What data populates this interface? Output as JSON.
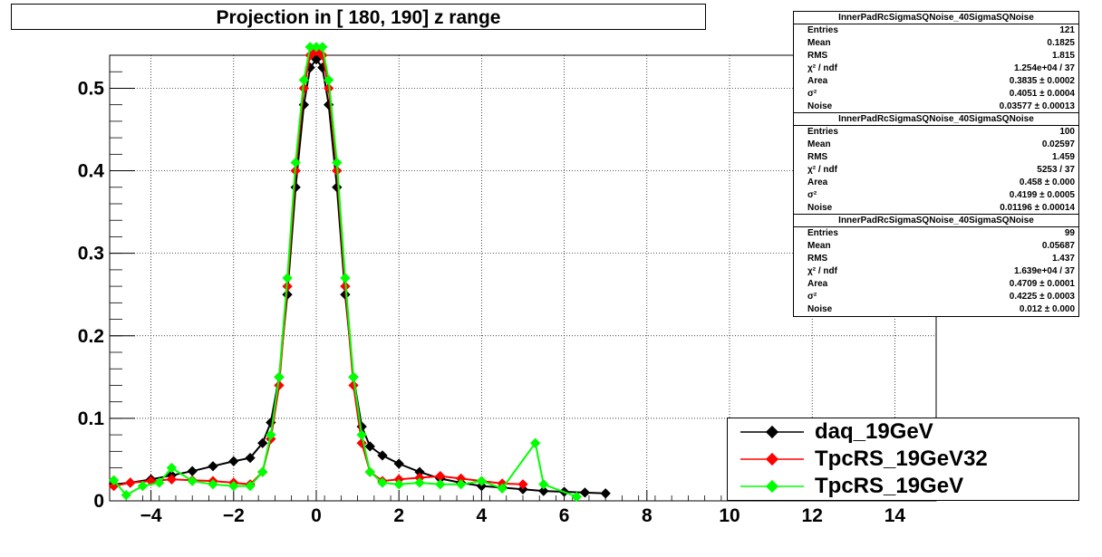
{
  "title": "Projection in [ 180, 190] z range",
  "stats_boxes": [
    {
      "header": "InnerPadRcSigmaSQNoise_40SigmaSQNoise",
      "rows": [
        {
          "label": "Entries",
          "value": "121"
        },
        {
          "label": "Mean",
          "value": "0.1825"
        },
        {
          "label": "RMS",
          "value": "1.815"
        },
        {
          "label": "χ² / ndf",
          "value": "1.254e+04 / 37"
        },
        {
          "label": "Area",
          "value": "0.3835 ± 0.0002"
        },
        {
          "label": "σ²",
          "value": "0.4051 ± 0.0004"
        },
        {
          "label": "Noise",
          "value": "0.03577 ± 0.00013"
        }
      ]
    },
    {
      "header": "InnerPadRcSigmaSQNoise_40SigmaSQNoise",
      "rows": [
        {
          "label": "Entries",
          "value": "100"
        },
        {
          "label": "Mean",
          "value": "0.02597"
        },
        {
          "label": "RMS",
          "value": "1.459"
        },
        {
          "label": "χ² / ndf",
          "value": "5253 / 37"
        },
        {
          "label": "Area",
          "value": "0.458 ± 0.000"
        },
        {
          "label": "σ²",
          "value": "0.4199 ± 0.0005"
        },
        {
          "label": "Noise",
          "value": "0.01196 ± 0.00014"
        }
      ]
    },
    {
      "header": "InnerPadRcSigmaSQNoise_40SigmaSQNoise",
      "rows": [
        {
          "label": "Entries",
          "value": "99"
        },
        {
          "label": "Mean",
          "value": "0.05687"
        },
        {
          "label": "RMS",
          "value": "1.437"
        },
        {
          "label": "χ² / ndf",
          "value": "1.639e+04 / 37"
        },
        {
          "label": "Area",
          "value": "0.4709 ± 0.0001"
        },
        {
          "label": "σ²",
          "value": "0.4225 ± 0.0003"
        },
        {
          "label": "Noise",
          "value": "0.012 ± 0.000"
        }
      ]
    }
  ],
  "legend": [
    {
      "label": "daq_19GeV",
      "color": "#000000"
    },
    {
      "label": "TpcRS_19GeV32",
      "color": "#ff0000"
    },
    {
      "label": "TpcRS_19GeV",
      "color": "#00ff00"
    }
  ],
  "chart_data": {
    "type": "scatter",
    "title": "Projection in [ 180, 190] z range",
    "xlim": [
      -5,
      15
    ],
    "ylim": [
      0,
      0.54
    ],
    "x_ticks": [
      "−4",
      "−2",
      "0",
      "2",
      "4",
      "6",
      "8",
      "10",
      "12",
      "14"
    ],
    "x_tick_values": [
      -4,
      -2,
      0,
      2,
      4,
      6,
      8,
      10,
      12,
      14
    ],
    "y_ticks": [
      "0",
      "0.1",
      "0.2",
      "0.3",
      "0.4",
      "0.5"
    ],
    "y_tick_values": [
      0,
      0.1,
      0.2,
      0.3,
      0.4,
      0.5
    ],
    "grid": true,
    "series": [
      {
        "name": "daq_19GeV",
        "color": "#000000",
        "x": [
          -4.9,
          -4.5,
          -4.0,
          -3.5,
          -3.0,
          -2.5,
          -2.0,
          -1.6,
          -1.3,
          -1.1,
          -0.9,
          -0.7,
          -0.5,
          -0.3,
          -0.15,
          0,
          0.15,
          0.3,
          0.5,
          0.7,
          0.9,
          1.1,
          1.3,
          1.6,
          2.0,
          2.5,
          3.0,
          3.5,
          4.0,
          4.5,
          5.0,
          5.5,
          6.0,
          6.5,
          7.0
        ],
        "y": [
          0.02,
          0.022,
          0.026,
          0.031,
          0.036,
          0.042,
          0.048,
          0.052,
          0.07,
          0.095,
          0.15,
          0.25,
          0.38,
          0.48,
          0.525,
          0.535,
          0.525,
          0.48,
          0.38,
          0.25,
          0.15,
          0.09,
          0.066,
          0.055,
          0.045,
          0.035,
          0.027,
          0.022,
          0.018,
          0.016,
          0.014,
          0.012,
          0.011,
          0.01,
          0.009
        ]
      },
      {
        "name": "TpcRS_19GeV32",
        "color": "#ff0000",
        "x": [
          -4.9,
          -4.5,
          -4.0,
          -3.5,
          -3.0,
          -2.5,
          -2.0,
          -1.6,
          -1.3,
          -1.1,
          -0.9,
          -0.7,
          -0.5,
          -0.3,
          -0.15,
          0,
          0.15,
          0.3,
          0.5,
          0.7,
          0.9,
          1.1,
          1.3,
          1.6,
          2.0,
          2.5,
          3.0,
          3.5,
          4.0,
          4.5,
          5.0
        ],
        "y": [
          0.018,
          0.022,
          0.024,
          0.026,
          0.025,
          0.024,
          0.022,
          0.02,
          0.035,
          0.075,
          0.14,
          0.26,
          0.4,
          0.5,
          0.54,
          0.545,
          0.54,
          0.5,
          0.4,
          0.26,
          0.14,
          0.07,
          0.035,
          0.024,
          0.026,
          0.028,
          0.03,
          0.027,
          0.024,
          0.021,
          0.02
        ]
      },
      {
        "name": "TpcRS_19GeV",
        "color": "#00ff00",
        "x": [
          -4.9,
          -4.6,
          -4.2,
          -3.8,
          -3.5,
          -3.0,
          -2.5,
          -2.0,
          -1.6,
          -1.3,
          -1.1,
          -0.9,
          -0.7,
          -0.5,
          -0.3,
          -0.15,
          0,
          0.15,
          0.3,
          0.5,
          0.7,
          0.9,
          1.1,
          1.3,
          1.6,
          2.0,
          2.5,
          3.0,
          3.5,
          4.0,
          4.5,
          5.3,
          5.5,
          6.3
        ],
        "y": [
          0.025,
          0.007,
          0.018,
          0.022,
          0.04,
          0.024,
          0.02,
          0.018,
          0.018,
          0.035,
          0.08,
          0.15,
          0.27,
          0.41,
          0.51,
          0.55,
          0.55,
          0.55,
          0.51,
          0.41,
          0.27,
          0.15,
          0.08,
          0.035,
          0.022,
          0.02,
          0.022,
          0.02,
          0.02,
          0.024,
          0.015,
          0.07,
          0.02,
          0.005
        ]
      }
    ]
  }
}
